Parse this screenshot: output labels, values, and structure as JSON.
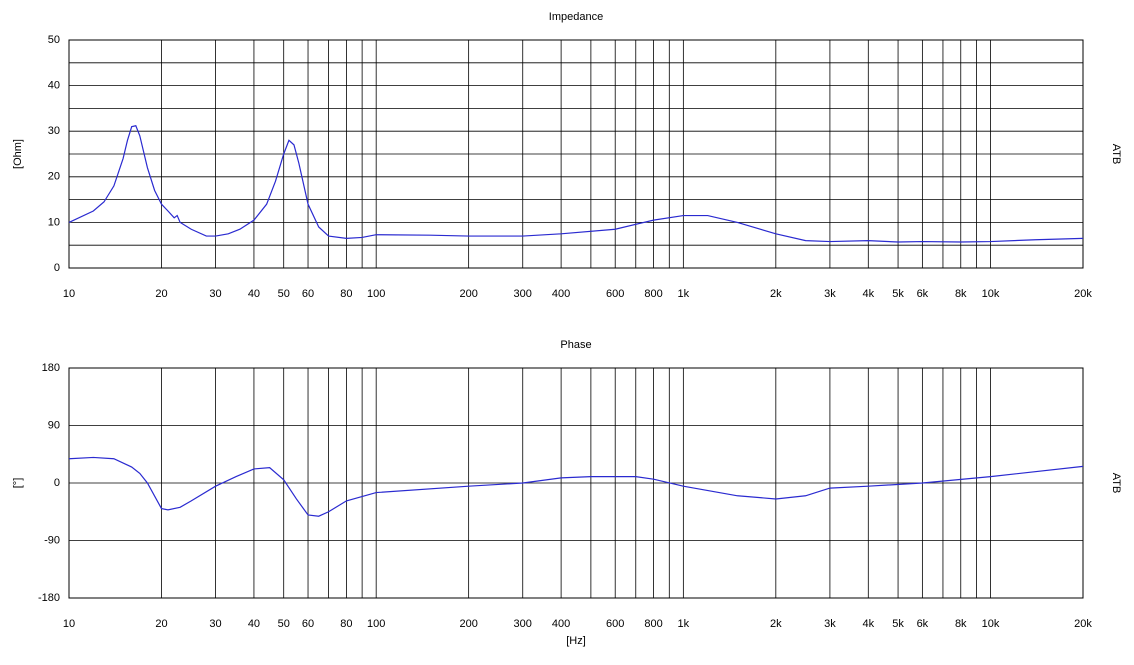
{
  "chart_data": [
    {
      "type": "line",
      "title": "Impedance",
      "ylabel": "[Ohm]",
      "side_label": "ATB",
      "log_x": true,
      "grid": true,
      "color": "#2a2ad0",
      "xlim": [
        10,
        20000
      ],
      "xticks": [
        10,
        20,
        30,
        40,
        50,
        60,
        80,
        100,
        200,
        300,
        400,
        600,
        800,
        {
          "value": 1000,
          "label": "1k"
        },
        {
          "value": 2000,
          "label": "2k"
        },
        {
          "value": 3000,
          "label": "3k"
        },
        {
          "value": 4000,
          "label": "4k"
        },
        {
          "value": 5000,
          "label": "5k"
        },
        {
          "value": 6000,
          "label": "6k"
        },
        {
          "value": 8000,
          "label": "8k"
        },
        {
          "value": 10000,
          "label": "10k"
        },
        {
          "value": 20000,
          "label": "20k"
        }
      ],
      "xgrid_minor": [
        70,
        90,
        500,
        700,
        900,
        7000,
        9000
      ],
      "ylim": [
        0,
        50
      ],
      "yticks": [
        0,
        10,
        20,
        30,
        40,
        50
      ],
      "ygrid_minor": [
        5,
        15,
        25,
        35,
        45
      ],
      "x": [
        10,
        12,
        13,
        14,
        15,
        15.5,
        16,
        16.5,
        17,
        18,
        19,
        20,
        21,
        22,
        22.5,
        23,
        25,
        28,
        30,
        33,
        36,
        40,
        44,
        47,
        50,
        52,
        54,
        56,
        60,
        65,
        70,
        80,
        90,
        100,
        150,
        200,
        300,
        400,
        600,
        800,
        1000,
        1200,
        1500,
        2000,
        2500,
        3000,
        4000,
        5000,
        6000,
        8000,
        10000,
        14000,
        20000
      ],
      "values": [
        10,
        12.5,
        14.5,
        18,
        24,
        28,
        31,
        31.2,
        29,
        22,
        17,
        14,
        12.5,
        11,
        11.5,
        10,
        8.5,
        7,
        7,
        7.5,
        8.5,
        10.5,
        14,
        19,
        25,
        28,
        27,
        23,
        14,
        9,
        7,
        6.5,
        6.7,
        7.3,
        7.2,
        7,
        7,
        7.5,
        8.5,
        10.5,
        11.5,
        11.5,
        10,
        7.5,
        6,
        5.8,
        6,
        5.7,
        5.8,
        5.7,
        5.8,
        6.2,
        6.5
      ]
    },
    {
      "type": "line",
      "title": "Phase",
      "ylabel": "[°]",
      "xlabel": "[Hz]",
      "side_label": "ATB",
      "log_x": true,
      "grid": true,
      "color": "#2a2ad0",
      "xlim": [
        10,
        20000
      ],
      "xticks": [
        10,
        20,
        30,
        40,
        50,
        60,
        80,
        100,
        200,
        300,
        400,
        600,
        800,
        {
          "value": 1000,
          "label": "1k"
        },
        {
          "value": 2000,
          "label": "2k"
        },
        {
          "value": 3000,
          "label": "3k"
        },
        {
          "value": 4000,
          "label": "4k"
        },
        {
          "value": 5000,
          "label": "5k"
        },
        {
          "value": 6000,
          "label": "6k"
        },
        {
          "value": 8000,
          "label": "8k"
        },
        {
          "value": 10000,
          "label": "10k"
        },
        {
          "value": 20000,
          "label": "20k"
        }
      ],
      "xgrid_minor": [
        70,
        90,
        500,
        700,
        900,
        7000,
        9000
      ],
      "ylim": [
        -180,
        180
      ],
      "yticks": [
        -180,
        -90,
        0,
        90,
        180
      ],
      "ygrid_minor": [],
      "x": [
        10,
        12,
        14,
        16,
        17,
        18,
        20,
        21,
        23,
        25,
        30,
        35,
        40,
        45,
        50,
        55,
        60,
        65,
        70,
        80,
        100,
        200,
        300,
        400,
        500,
        700,
        800,
        1000,
        1500,
        2000,
        2500,
        3000,
        4000,
        6000,
        10000,
        20000
      ],
      "values": [
        38,
        40,
        38,
        25,
        15,
        0,
        -40,
        -42,
        -38,
        -28,
        -5,
        10,
        22,
        24,
        5,
        -25,
        -50,
        -52,
        -45,
        -28,
        -15,
        -5,
        0,
        8,
        10,
        10,
        6,
        -5,
        -20,
        -25,
        -20,
        -8,
        -5,
        0,
        10,
        26
      ]
    }
  ]
}
